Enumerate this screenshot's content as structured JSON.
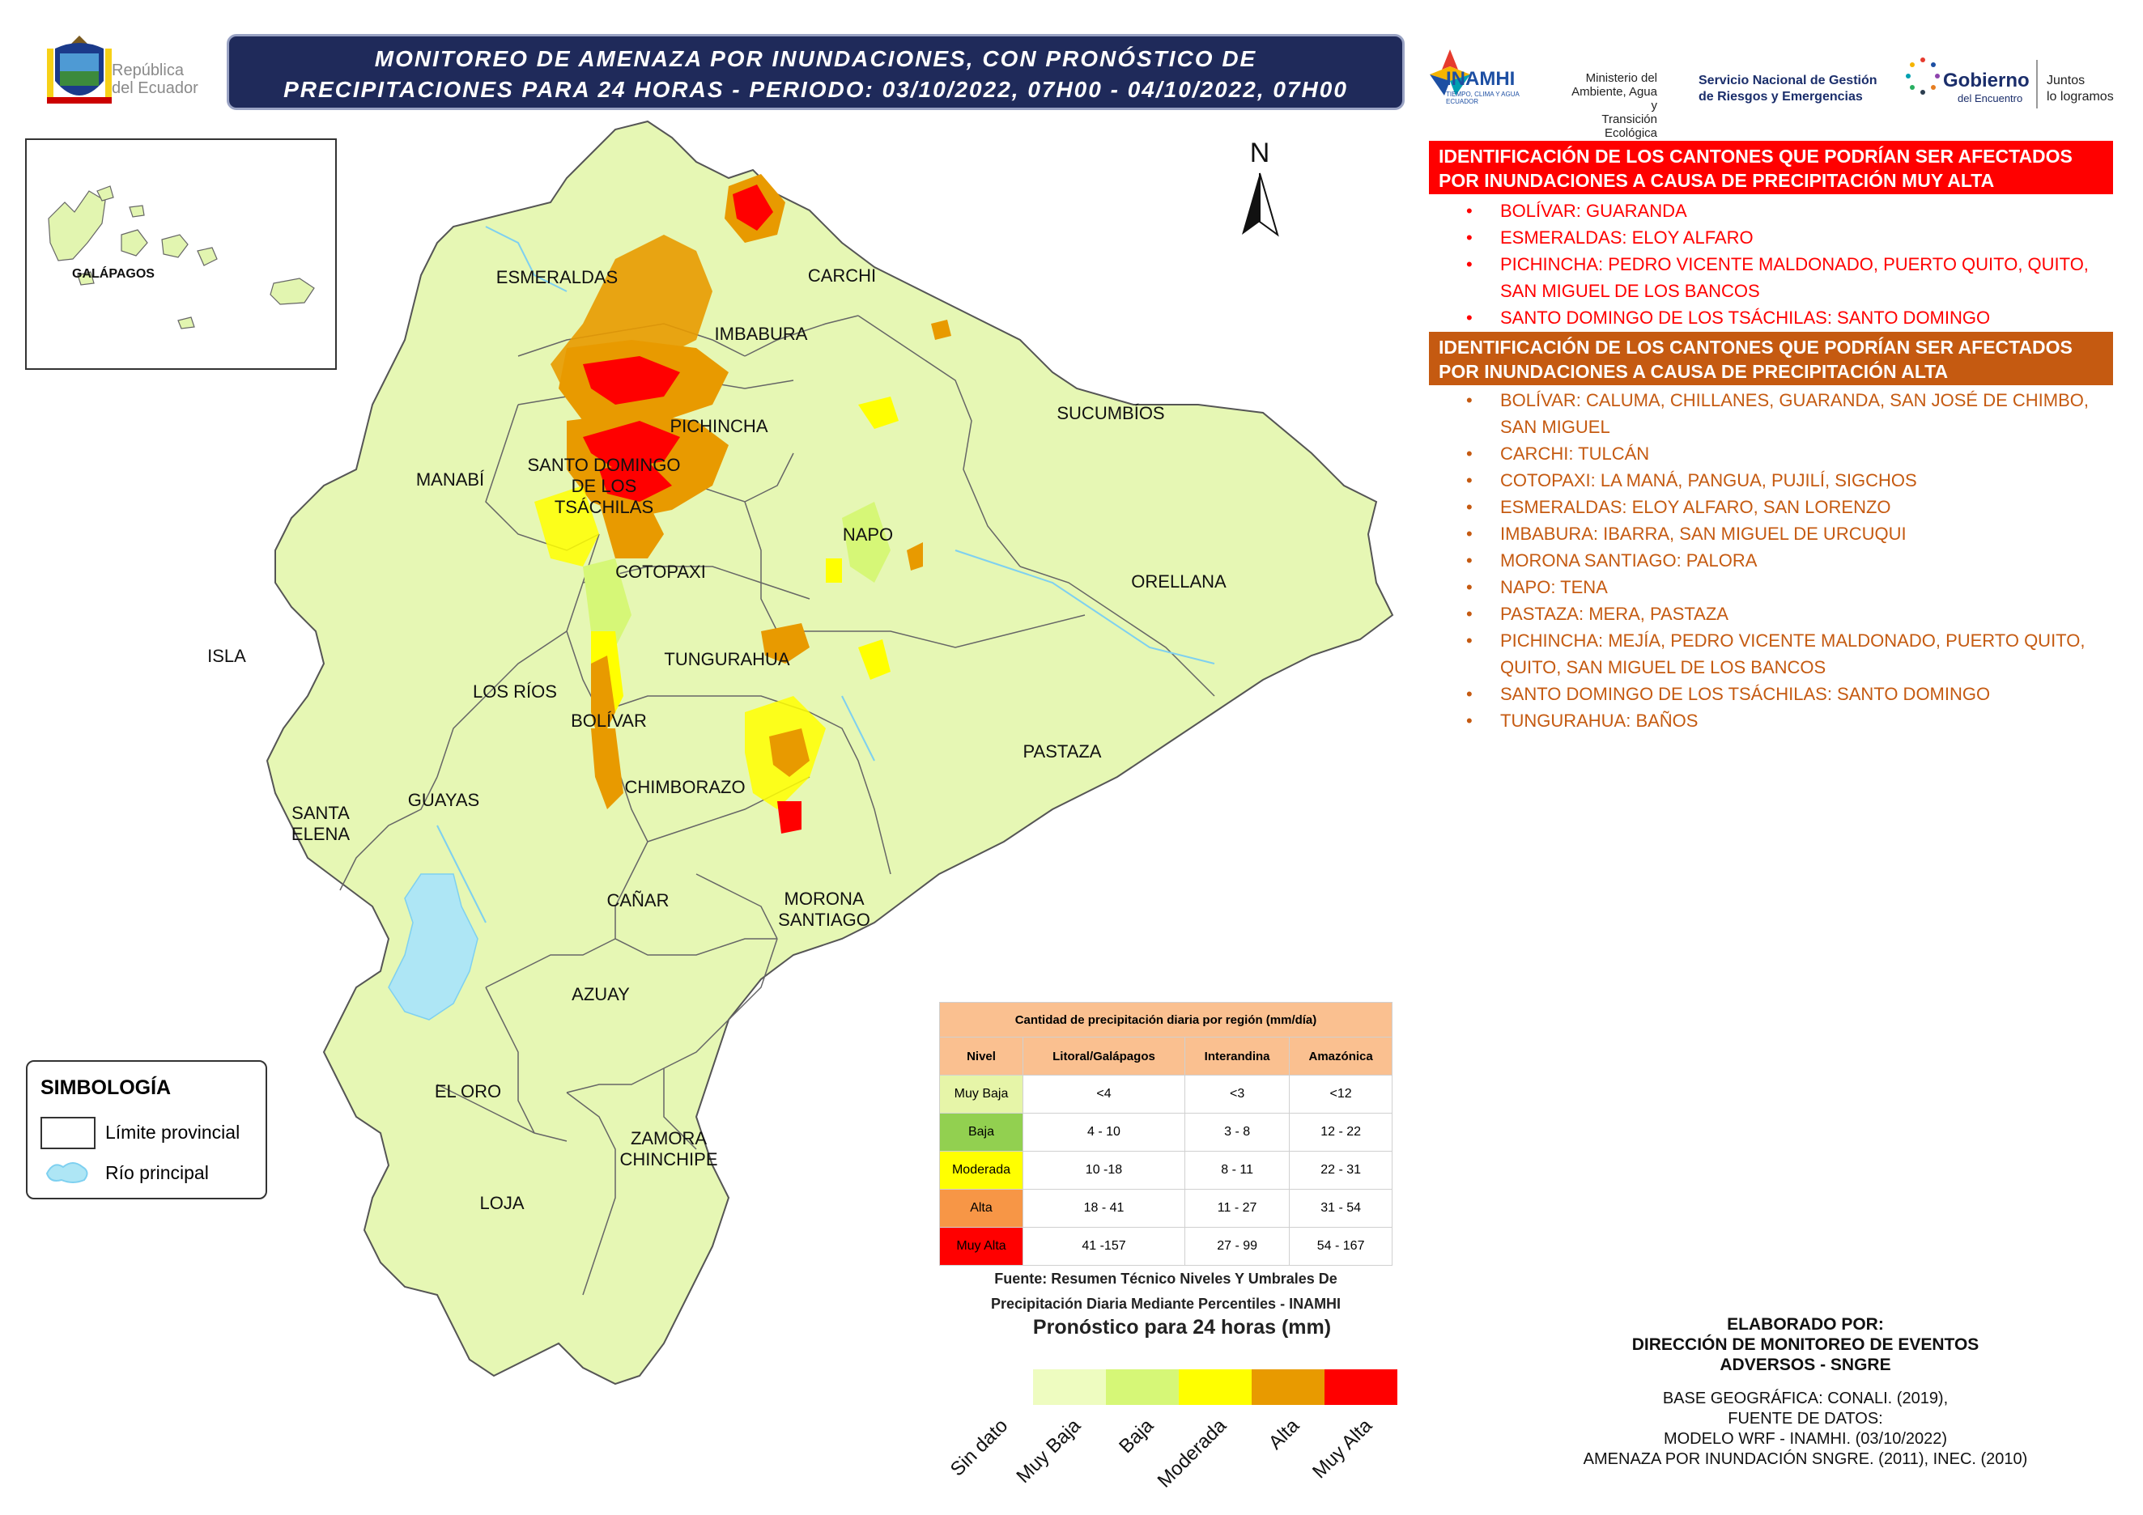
{
  "header": {
    "title_line1": "MONITOREO DE AMENAZA POR INUNDACIONES, CON PRONÓSTICO DE",
    "title_line2": "PRECIPITACIONES  PARA 24  HORAS - PERIODO: 03/10/2022, 07H00 - 04/10/2022, 07H00",
    "brand_line1": "República",
    "brand_line2": "del Ecuador"
  },
  "logos": {
    "inamhi": "INAMHI",
    "inamhi_sub": "TIEMPO, CLIMA Y AGUA ECUADOR",
    "ministerio": [
      "Ministerio del",
      "Ambiente, Agua y",
      "Transición Ecológica"
    ],
    "sngre": [
      "Servicio Nacional de Gestión",
      "de Riesgos y Emergencias"
    ],
    "gobierno": "Gobierno",
    "gobierno_sub": "del Encuentro",
    "juntos": [
      "Juntos",
      "lo logramos"
    ]
  },
  "map": {
    "north": "N",
    "inset_label": "GALÁPAGOS",
    "provinces": [
      {
        "name": "ESMERALDAS"
      },
      {
        "name": "CARCHI"
      },
      {
        "name": "IMBABURA"
      },
      {
        "name": "SUCUMBÍOS"
      },
      {
        "name": "PICHINCHA"
      },
      {
        "name": "MANABÍ"
      },
      {
        "name": "SANTO DOMINGO"
      },
      {
        "name": "DE LOS"
      },
      {
        "name": "TSÁCHILAS"
      },
      {
        "name": "NAPO"
      },
      {
        "name": "COTOPAXI"
      },
      {
        "name": "ORELLANA"
      },
      {
        "name": "ISLA"
      },
      {
        "name": "TUNGURAHUA"
      },
      {
        "name": "LOS RÍOS"
      },
      {
        "name": "BOLÍVAR"
      },
      {
        "name": "PASTAZA"
      },
      {
        "name": "SANTA"
      },
      {
        "name": "ELENA"
      },
      {
        "name": "GUAYAS"
      },
      {
        "name": "CHIMBORAZO"
      },
      {
        "name": "CAÑAR"
      },
      {
        "name": "MORONA"
      },
      {
        "name": "SANTIAGO"
      },
      {
        "name": "AZUAY"
      },
      {
        "name": "EL ORO"
      },
      {
        "name": "ZAMORA"
      },
      {
        "name": "CHINCHIPE"
      },
      {
        "name": "LOJA"
      }
    ]
  },
  "alerts": {
    "muy_alta_title": "IDENTIFICACIÓN DE LOS CANTONES QUE PODRÍAN SER AFECTADOS POR INUNDACIONES A CAUSA DE  PRECIPITACIÓN MUY ALTA",
    "muy_alta_color": "#ff0000",
    "muy_alta_items": [
      "BOLÍVAR: GUARANDA",
      "ESMERALDAS: ELOY ALFARO",
      "PICHINCHA: PEDRO VICENTE MALDONADO, PUERTO QUITO, QUITO, SAN MIGUEL DE LOS BANCOS",
      "SANTO DOMINGO DE LOS TSÁCHILAS: SANTO DOMINGO"
    ],
    "alta_title": "IDENTIFICACIÓN DE LOS CANTONES QUE PODRÍAN SER AFECTADOS POR INUNDACIONES A CAUSA DE  PRECIPITACIÓN  ALTA",
    "alta_color": "#c55a11",
    "alta_items": [
      "BOLÍVAR: CALUMA, CHILLANES, GUARANDA, SAN JOSÉ DE CHIMBO, SAN MIGUEL",
      "CARCHI: TULCÁN",
      "COTOPAXI: LA MANÁ, PANGUA, PUJILÍ, SIGCHOS",
      "ESMERALDAS: ELOY ALFARO, SAN LORENZO",
      "IMBABURA: IBARRA, SAN MIGUEL DE URCUQUI",
      "MORONA SANTIAGO: PALORA",
      "NAPO: TENA",
      "PASTAZA: MERA, PASTAZA",
      "PICHINCHA: MEJÍA, PEDRO VICENTE MALDONADO, PUERTO QUITO, QUITO, SAN MIGUEL DE LOS BANCOS",
      "SANTO DOMINGO DE LOS TSÁCHILAS: SANTO DOMINGO",
      "TUNGURAHUA: BAÑOS"
    ]
  },
  "symbology": {
    "title": "SIMBOLOGÍA",
    "limit": "Límite provincial",
    "river": "Río principal"
  },
  "threshold_table": {
    "caption": "Cantidad de precipitación diaria por región (mm/día)",
    "headers": [
      "Nivel",
      "Litoral/Galápagos",
      "Interandina",
      "Amazónica"
    ],
    "rows": [
      {
        "level": "Muy Baja",
        "color": "#e6f5a8",
        "litoral": "<4",
        "interandina": "<3",
        "amazonica": "<12"
      },
      {
        "level": "Baja",
        "color": "#92d050",
        "litoral": "4 - 10",
        "interandina": "3 - 8",
        "amazonica": "12 - 22"
      },
      {
        "level": "Moderada",
        "color": "#ffff00",
        "litoral": "10 -18",
        "interandina": "8 - 11",
        "amazonica": "22 - 31"
      },
      {
        "level": "Alta",
        "color": "#f79646",
        "litoral": "18 - 41",
        "interandina": "11 - 27",
        "amazonica": "31 - 54"
      },
      {
        "level": "Muy Alta",
        "color": "#ff0000",
        "litoral": "41 -157",
        "interandina": "27 - 99",
        "amazonica": "54 - 167"
      }
    ],
    "source_line1": "Fuente: Resumen Técnico Niveles Y Umbrales De",
    "source_line2": "Precipitación Diaria Mediante Percentiles - INAMHI"
  },
  "forecast_legend": {
    "title": "Pronóstico para 24 horas (mm)",
    "classes": [
      {
        "label": "Sin dato",
        "color": ""
      },
      {
        "label": "Muy Baja",
        "color": "#eefcc0"
      },
      {
        "label": "Baja",
        "color": "#d6f777"
      },
      {
        "label": "Moderada",
        "color": "#ffff00"
      },
      {
        "label": "Alta",
        "color": "#e89a00"
      },
      {
        "label": "Muy Alta",
        "color": "#ff0000"
      }
    ]
  },
  "credits": {
    "by1": "ELABORADO POR:",
    "by2": "DIRECCIÓN DE MONITOREO DE EVENTOS",
    "by3": "ADVERSOS - SNGRE",
    "base1": "BASE GEOGRÁFICA: CONALI. (2019),",
    "base2": "FUENTE DE DATOS:",
    "base3": "MODELO WRF - INAMHI. (03/10/2022)",
    "base4": "AMENAZA POR INUNDACIÓN SNGRE. (2011), INEC. (2010)"
  }
}
